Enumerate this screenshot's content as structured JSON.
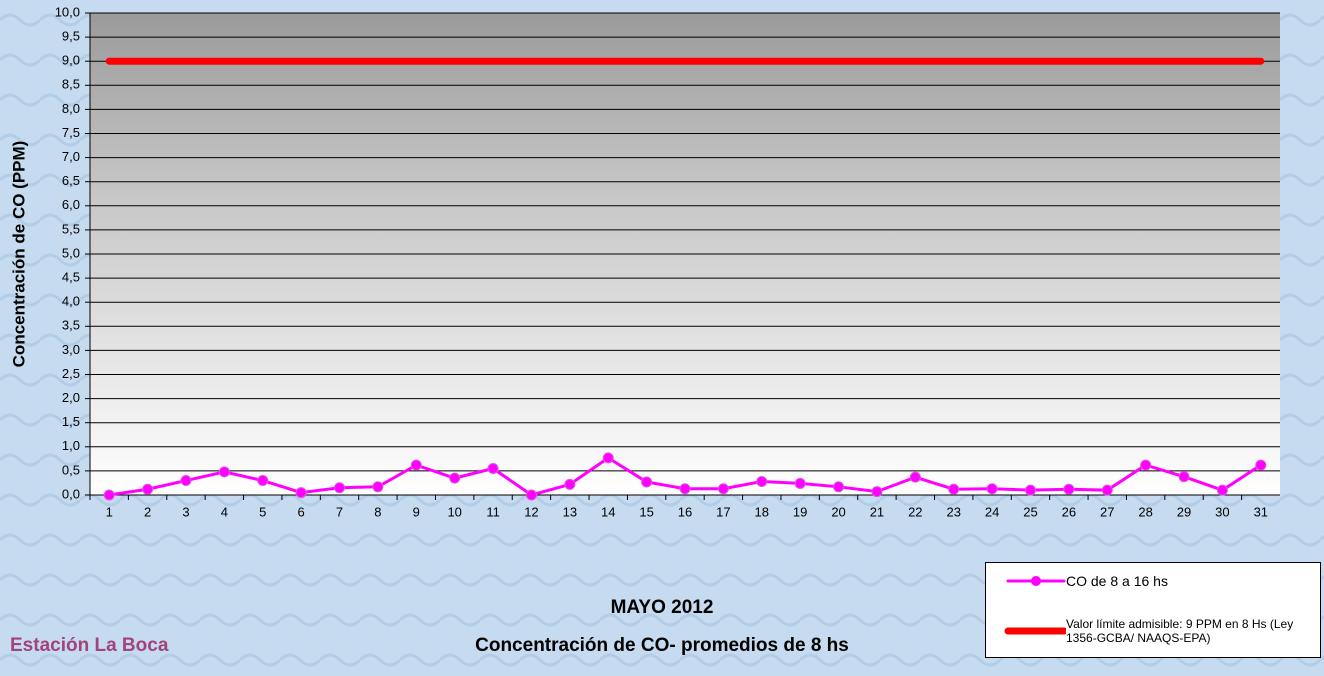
{
  "chart_data": {
    "type": "line",
    "title": "MAYO 2012",
    "subtitle": "Concentración de CO- promedios de 8 hs",
    "station": "Estación La Boca",
    "y_label": "Concentración de CO (PPM)",
    "categories": [
      "1",
      "2",
      "3",
      "4",
      "5",
      "6",
      "7",
      "8",
      "9",
      "10",
      "11",
      "12",
      "13",
      "14",
      "15",
      "16",
      "17",
      "18",
      "19",
      "20",
      "21",
      "22",
      "23",
      "24",
      "25",
      "26",
      "27",
      "28",
      "29",
      "30",
      "31"
    ],
    "series": [
      {
        "name": "CO de 8 a 16 hs",
        "color": "#ff00ff",
        "marker": true,
        "values": [
          0.0,
          0.12,
          0.3,
          0.48,
          0.3,
          0.05,
          0.15,
          0.17,
          0.62,
          0.35,
          0.55,
          0.0,
          0.22,
          0.77,
          0.27,
          0.13,
          0.13,
          0.28,
          0.24,
          0.17,
          0.07,
          0.37,
          0.12,
          0.13,
          0.1,
          0.12,
          0.1,
          0.62,
          0.38,
          0.1,
          0.62
        ]
      },
      {
        "name": "Valor límite admisible: 9 PPM en 8 Hs (Ley 1356-GCBA/ NAAQS-EPA)",
        "color": "#ff0000",
        "marker": false,
        "values": [
          9,
          9,
          9,
          9,
          9,
          9,
          9,
          9,
          9,
          9,
          9,
          9,
          9,
          9,
          9,
          9,
          9,
          9,
          9,
          9,
          9,
          9,
          9,
          9,
          9,
          9,
          9,
          9,
          9,
          9,
          9
        ]
      }
    ],
    "ylim": [
      0,
      10
    ],
    "yticks": [
      {
        "value": 0,
        "label": "0,0"
      },
      {
        "value": 0.5,
        "label": "0,5"
      },
      {
        "value": 1,
        "label": "1,0"
      },
      {
        "value": 1.5,
        "label": "1,5"
      },
      {
        "value": 2,
        "label": "2,0"
      },
      {
        "value": 2.5,
        "label": "2,5"
      },
      {
        "value": 3,
        "label": "3,0"
      },
      {
        "value": 3.5,
        "label": "3,5"
      },
      {
        "value": 4,
        "label": "4,0"
      },
      {
        "value": 4.5,
        "label": "4,5"
      },
      {
        "value": 5,
        "label": "5,0"
      },
      {
        "value": 5.5,
        "label": "5,5"
      },
      {
        "value": 6,
        "label": "6,0"
      },
      {
        "value": 6.5,
        "label": "6,5"
      },
      {
        "value": 7,
        "label": "7,0"
      },
      {
        "value": 7.5,
        "label": "7,5"
      },
      {
        "value": 8,
        "label": "8,0"
      },
      {
        "value": 8.5,
        "label": "8,5"
      },
      {
        "value": 9,
        "label": "9,0"
      },
      {
        "value": 9.5,
        "label": "9,5"
      },
      {
        "value": 10,
        "label": "10,0"
      }
    ],
    "grid": true
  }
}
